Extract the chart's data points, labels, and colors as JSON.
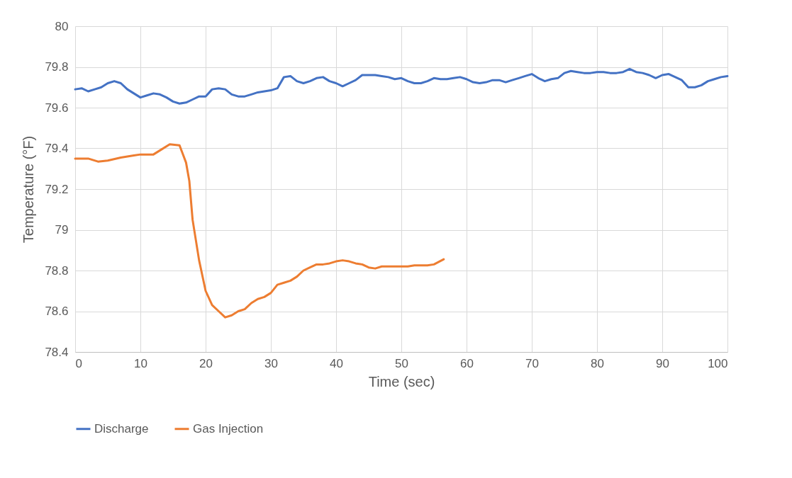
{
  "chart_data": {
    "type": "line",
    "xlabel": "Time (sec)",
    "ylabel": "Temperature (°F)",
    "xlim": [
      0,
      100
    ],
    "xticks": [
      0,
      10,
      20,
      30,
      40,
      50,
      60,
      70,
      80,
      90,
      100
    ],
    "ylim": [
      78.4,
      80
    ],
    "yticks": [
      78.4,
      78.6,
      78.8,
      {
        "value": 79,
        "label": "79"
      },
      79.2,
      79.4,
      79.6,
      79.8,
      {
        "value": 80,
        "label": "80"
      }
    ],
    "grid": true,
    "legend": "bottom",
    "marker": "none",
    "line_style": "solid",
    "series": [
      {
        "name": "Discharge",
        "color": "#4472c4",
        "x": [
          0,
          1,
          2,
          3,
          4,
          5,
          6,
          7,
          8,
          9,
          10,
          11,
          12,
          13,
          14,
          15,
          16,
          17,
          18,
          19,
          20,
          21,
          22,
          23,
          24,
          25,
          26,
          27,
          28,
          29,
          30,
          31,
          32,
          33,
          34,
          35,
          36,
          37,
          38,
          39,
          40,
          41,
          42,
          43,
          44,
          45,
          46,
          47,
          48,
          49,
          50,
          51,
          52,
          53,
          54,
          55,
          56,
          57,
          58,
          59,
          60,
          61,
          62,
          63,
          64,
          65,
          66,
          67,
          68,
          69,
          70,
          71,
          72,
          73,
          74,
          75,
          76,
          77,
          78,
          79,
          80,
          81,
          82,
          83,
          84,
          85,
          86,
          87,
          88,
          89,
          90,
          91,
          92,
          93,
          94,
          95,
          96,
          97,
          98,
          99,
          100
        ],
        "values": [
          79.69,
          79.695,
          79.68,
          79.69,
          79.7,
          79.72,
          79.73,
          79.72,
          79.69,
          79.67,
          79.65,
          79.66,
          79.67,
          79.665,
          79.65,
          79.63,
          79.62,
          79.625,
          79.64,
          79.655,
          79.655,
          79.69,
          79.695,
          79.69,
          79.665,
          79.655,
          79.655,
          79.665,
          79.675,
          79.68,
          79.685,
          79.695,
          79.75,
          79.755,
          79.73,
          79.72,
          79.73,
          79.745,
          79.75,
          79.73,
          79.72,
          79.705,
          79.72,
          79.735,
          79.76,
          79.76,
          79.76,
          79.755,
          79.75,
          79.74,
          79.745,
          79.73,
          79.72,
          79.72,
          79.73,
          79.745,
          79.74,
          79.74,
          79.745,
          79.75,
          79.74,
          79.725,
          79.72,
          79.725,
          79.735,
          79.735,
          79.725,
          79.735,
          79.745,
          79.755,
          79.765,
          79.745,
          79.73,
          79.74,
          79.745,
          79.77,
          79.78,
          79.775,
          79.77,
          79.77,
          79.775,
          79.775,
          79.77,
          79.77,
          79.775,
          79.79,
          79.775,
          79.77,
          79.76,
          79.745,
          79.76,
          79.765,
          79.75,
          79.735,
          79.7,
          79.7,
          79.71,
          79.73,
          79.74,
          79.75,
          79.755
        ]
      },
      {
        "name": "Gas Injection",
        "color": "#ed7d31",
        "x": [
          0,
          2,
          3.5,
          5,
          7,
          9,
          10,
          12,
          13,
          14.5,
          16,
          17,
          17.5,
          18,
          18.5,
          19,
          20,
          21,
          22,
          23,
          24,
          25,
          26,
          27,
          28,
          29,
          30,
          31,
          32,
          33,
          34,
          35,
          36,
          37,
          38,
          39,
          40,
          41,
          42,
          43,
          44,
          45,
          46,
          47,
          48,
          50,
          51,
          52,
          54,
          55,
          56.5
        ],
        "values": [
          79.35,
          79.35,
          79.335,
          79.34,
          79.355,
          79.365,
          79.37,
          79.37,
          79.39,
          79.42,
          79.415,
          79.33,
          79.24,
          79.05,
          78.95,
          78.85,
          78.7,
          78.63,
          78.6,
          78.57,
          78.58,
          78.6,
          78.61,
          78.64,
          78.66,
          78.67,
          78.69,
          78.73,
          78.74,
          78.75,
          78.77,
          78.8,
          78.815,
          78.83,
          78.83,
          78.835,
          78.845,
          78.85,
          78.845,
          78.835,
          78.83,
          78.815,
          78.81,
          78.82,
          78.82,
          78.82,
          78.82,
          78.825,
          78.825,
          78.83,
          78.855
        ]
      }
    ]
  }
}
